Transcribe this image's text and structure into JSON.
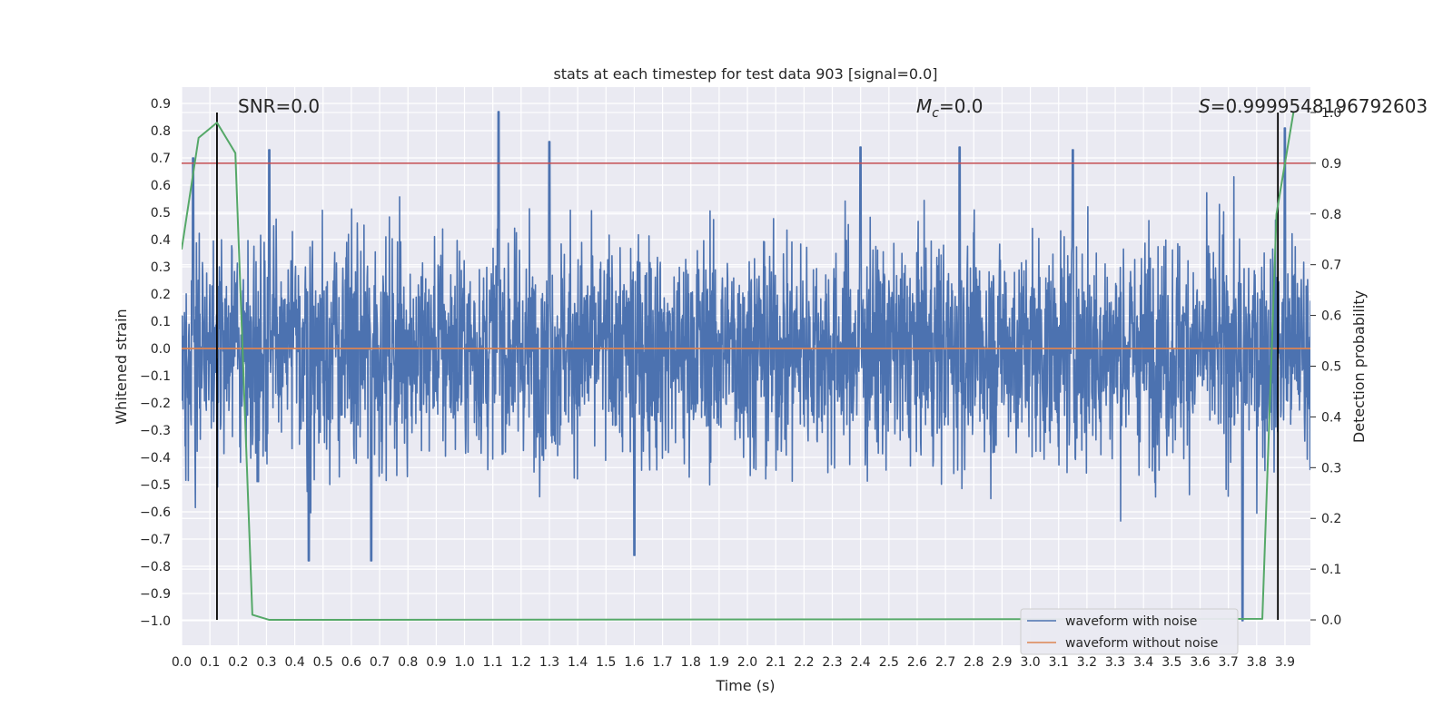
{
  "chart_data": {
    "type": "line",
    "title": "stats at each timestep for test data 903 [signal=0.0]",
    "xlabel": "Time (s)",
    "ylabel": "Whitened strain",
    "y2label": "Detection probability",
    "xlim": [
      0.0,
      3.99
    ],
    "ylim": [
      -1.09,
      0.96
    ],
    "y2lim": [
      -0.05,
      1.05
    ],
    "x_ticks": [
      "0.0",
      "0.1",
      "0.2",
      "0.3",
      "0.4",
      "0.5",
      "0.6",
      "0.7",
      "0.8",
      "0.9",
      "1.0",
      "1.1",
      "1.2",
      "1.3",
      "1.4",
      "1.5",
      "1.6",
      "1.7",
      "1.8",
      "1.9",
      "2.0",
      "2.1",
      "2.2",
      "2.3",
      "2.4",
      "2.5",
      "2.6",
      "2.7",
      "2.8",
      "2.9",
      "3.0",
      "3.1",
      "3.2",
      "3.3",
      "3.4",
      "3.5",
      "3.6",
      "3.7",
      "3.8",
      "3.9"
    ],
    "y_ticks": [
      "0.9",
      "0.8",
      "0.7",
      "0.6",
      "0.5",
      "0.4",
      "0.3",
      "0.2",
      "0.1",
      "0.0",
      "−0.1",
      "−0.2",
      "−0.3",
      "−0.4",
      "−0.5",
      "−0.6",
      "−0.7",
      "−0.8",
      "−0.9",
      "−1.0"
    ],
    "y2_ticks": [
      "1.0",
      "0.9",
      "0.8",
      "0.7",
      "0.6",
      "0.5",
      "0.4",
      "0.3",
      "0.2",
      "0.1",
      "0.0"
    ],
    "annotations": {
      "snr": "SNR=0.0",
      "mc_symbol": "M",
      "mc_sub": "c",
      "mc_value": "=0.0",
      "s_symbol": "S",
      "s_value": "=0.9999548196792603"
    },
    "threshold_y2": 0.9,
    "vertical_lines_x": [
      0.125,
      3.875
    ],
    "grid": true,
    "legend_placement": "lower right",
    "series": [
      {
        "name": "waveform with noise",
        "color": "#4c72b0",
        "kind": "noise",
        "y_max": 0.87,
        "y_min": -1.0,
        "spikes": [
          [
            0.04,
            0.7
          ],
          [
            0.31,
            0.73
          ],
          [
            0.45,
            -0.78
          ],
          [
            0.67,
            -0.78
          ],
          [
            1.12,
            0.87
          ],
          [
            1.3,
            0.76
          ],
          [
            1.6,
            -0.76
          ],
          [
            2.4,
            0.74
          ],
          [
            2.75,
            0.74
          ],
          [
            3.15,
            0.73
          ],
          [
            3.75,
            -1.0
          ],
          [
            3.9,
            0.81
          ]
        ]
      },
      {
        "name": "waveform without noise",
        "color": "#dd8452",
        "kind": "flat",
        "values": [
          [
            0.0,
            0.0
          ],
          [
            3.99,
            0.0
          ]
        ]
      },
      {
        "name": "detection probability",
        "color": "#55a868",
        "axis": "y2",
        "values": [
          [
            0.0,
            0.73
          ],
          [
            0.06,
            0.95
          ],
          [
            0.125,
            0.98
          ],
          [
            0.19,
            0.92
          ],
          [
            0.25,
            0.01
          ],
          [
            0.31,
            0.0
          ],
          [
            2.3,
            0.001
          ],
          [
            3.82,
            0.002
          ],
          [
            3.87,
            0.8
          ],
          [
            3.93,
            1.0
          ]
        ]
      }
    ],
    "colors": {
      "threshold": "#c44e52",
      "vline": "#000000",
      "grid": "#ffffff",
      "plot_bg": "#eaeaf2"
    }
  }
}
